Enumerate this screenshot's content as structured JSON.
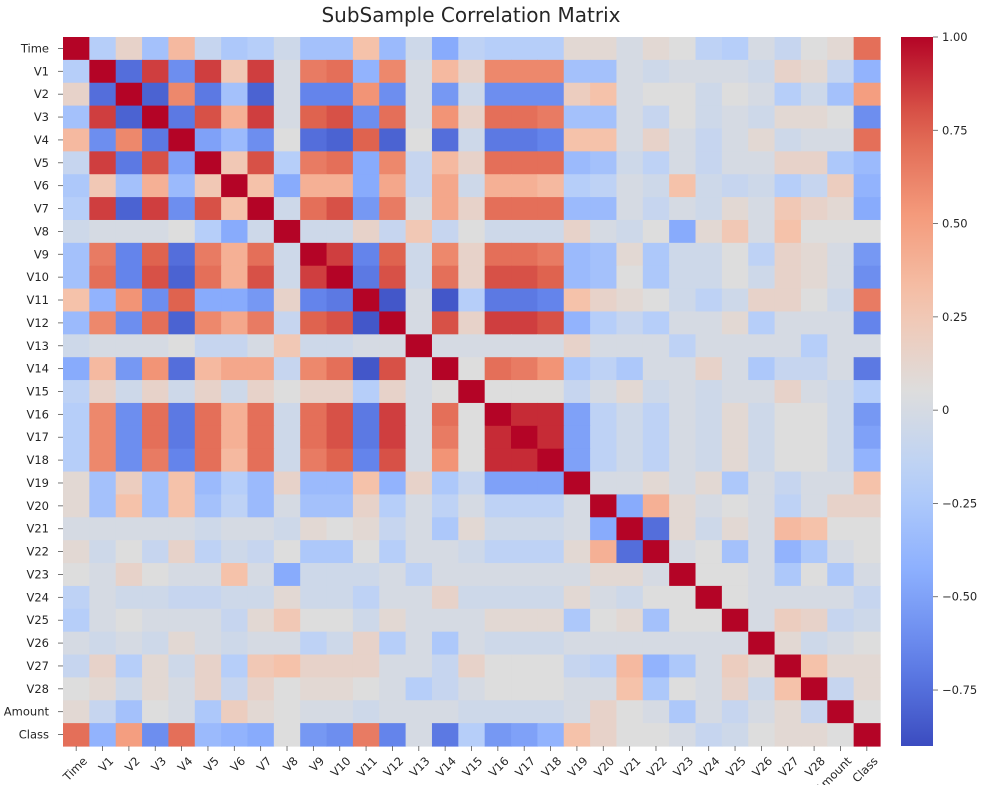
{
  "chart_data": {
    "type": "heatmap",
    "title": "SubSample Correlation Matrix",
    "labels": [
      "Time",
      "V1",
      "V2",
      "V3",
      "V4",
      "V5",
      "V6",
      "V7",
      "V8",
      "V9",
      "V10",
      "V11",
      "V12",
      "V13",
      "V14",
      "V15",
      "V16",
      "V17",
      "V18",
      "V19",
      "V20",
      "V21",
      "V22",
      "V23",
      "V24",
      "V25",
      "V26",
      "V27",
      "V28",
      "Amount",
      "Class"
    ],
    "matrix": [
      [
        1.0,
        -0.2,
        0.15,
        -0.3,
        0.35,
        -0.1,
        -0.25,
        -0.2,
        -0.05,
        -0.3,
        -0.3,
        0.3,
        -0.35,
        -0.05,
        -0.45,
        -0.15,
        -0.2,
        -0.2,
        -0.2,
        0.1,
        0.1,
        0.0,
        0.1,
        0.05,
        -0.15,
        -0.2,
        0.0,
        -0.1,
        0.05,
        0.1,
        0.7
      ],
      [
        -0.2,
        1.0,
        -0.75,
        0.85,
        -0.6,
        0.85,
        0.25,
        0.85,
        0.0,
        0.65,
        0.7,
        -0.4,
        0.6,
        0.0,
        0.35,
        0.15,
        0.6,
        0.6,
        0.6,
        -0.3,
        -0.3,
        0.0,
        -0.05,
        0.0,
        0.0,
        0.0,
        -0.05,
        0.15,
        0.1,
        -0.1,
        -0.4
      ],
      [
        0.15,
        -0.75,
        1.0,
        -0.8,
        0.6,
        -0.7,
        -0.3,
        -0.8,
        0.0,
        -0.65,
        -0.65,
        0.55,
        -0.6,
        0.0,
        -0.55,
        -0.05,
        -0.6,
        -0.6,
        -0.6,
        0.2,
        0.3,
        0.0,
        0.05,
        0.05,
        -0.05,
        0.05,
        0.0,
        -0.2,
        -0.05,
        -0.3,
        0.5
      ],
      [
        -0.3,
        0.85,
        -0.8,
        1.0,
        -0.7,
        0.8,
        0.4,
        0.85,
        0.0,
        0.75,
        0.8,
        -0.6,
        0.7,
        0.0,
        0.55,
        0.15,
        0.7,
        0.7,
        0.65,
        -0.3,
        -0.3,
        0.0,
        -0.1,
        0.05,
        -0.05,
        0.0,
        -0.05,
        0.1,
        0.1,
        0.05,
        -0.6
      ],
      [
        0.35,
        -0.6,
        0.6,
        -0.7,
        1.0,
        -0.5,
        -0.35,
        -0.6,
        0.05,
        -0.75,
        -0.8,
        0.75,
        -0.8,
        0.05,
        -0.75,
        -0.05,
        -0.7,
        -0.7,
        -0.65,
        0.3,
        0.3,
        0.0,
        0.15,
        0.0,
        -0.1,
        0.0,
        0.1,
        -0.05,
        0.0,
        0.0,
        0.7
      ],
      [
        -0.1,
        0.85,
        -0.7,
        0.8,
        -0.5,
        1.0,
        0.25,
        0.8,
        -0.2,
        0.65,
        0.7,
        -0.45,
        0.6,
        -0.1,
        0.35,
        0.15,
        0.7,
        0.7,
        0.7,
        -0.35,
        -0.3,
        -0.05,
        -0.15,
        0.0,
        -0.1,
        0.0,
        0.0,
        0.15,
        0.15,
        -0.25,
        -0.35
      ],
      [
        -0.25,
        0.25,
        -0.3,
        0.4,
        -0.35,
        0.25,
        1.0,
        0.3,
        -0.45,
        0.4,
        0.4,
        -0.45,
        0.45,
        -0.1,
        0.45,
        -0.05,
        0.4,
        0.4,
        0.35,
        -0.2,
        -0.15,
        0.0,
        -0.05,
        0.3,
        -0.05,
        -0.1,
        -0.05,
        -0.2,
        -0.1,
        0.2,
        -0.4
      ],
      [
        -0.2,
        0.85,
        -0.8,
        0.85,
        -0.6,
        0.8,
        0.3,
        1.0,
        -0.05,
        0.7,
        0.8,
        -0.55,
        0.65,
        0.0,
        0.45,
        0.15,
        0.7,
        0.7,
        0.7,
        -0.35,
        -0.35,
        0.0,
        -0.1,
        0.0,
        -0.05,
        0.1,
        0.0,
        0.25,
        0.15,
        0.1,
        -0.45
      ],
      [
        -0.05,
        0.0,
        0.0,
        0.0,
        0.05,
        -0.2,
        -0.45,
        -0.05,
        1.0,
        -0.05,
        -0.05,
        0.15,
        -0.1,
        0.25,
        -0.1,
        0.05,
        -0.05,
        -0.05,
        -0.05,
        0.15,
        0.0,
        -0.05,
        0.05,
        -0.45,
        0.1,
        0.25,
        0.0,
        0.3,
        0.05,
        0.05,
        0.05
      ],
      [
        -0.3,
        0.65,
        -0.65,
        0.75,
        -0.75,
        0.65,
        0.4,
        0.7,
        -0.05,
        1.0,
        0.85,
        -0.65,
        0.75,
        -0.05,
        0.6,
        0.15,
        0.7,
        0.7,
        0.65,
        -0.35,
        -0.3,
        0.1,
        -0.25,
        -0.05,
        -0.05,
        0.05,
        -0.15,
        0.15,
        0.1,
        0.0,
        -0.55
      ],
      [
        -0.3,
        0.7,
        -0.65,
        0.8,
        -0.8,
        0.7,
        0.4,
        0.8,
        -0.05,
        0.85,
        1.0,
        -0.7,
        0.8,
        -0.05,
        0.7,
        0.15,
        0.8,
        0.8,
        0.75,
        -0.35,
        -0.3,
        0.05,
        -0.25,
        -0.05,
        -0.05,
        0.05,
        -0.05,
        0.15,
        0.1,
        0.0,
        -0.6
      ],
      [
        0.3,
        -0.4,
        0.55,
        -0.6,
        0.75,
        -0.45,
        -0.45,
        -0.55,
        0.15,
        -0.65,
        -0.7,
        1.0,
        -0.85,
        0.0,
        -0.85,
        -0.2,
        -0.7,
        -0.7,
        -0.65,
        0.3,
        0.15,
        0.1,
        0.05,
        -0.05,
        -0.15,
        -0.05,
        0.15,
        0.15,
        0.05,
        -0.05,
        0.65
      ],
      [
        -0.35,
        0.6,
        -0.6,
        0.7,
        -0.8,
        0.6,
        0.45,
        0.65,
        -0.1,
        0.75,
        0.8,
        -0.85,
        1.0,
        0.0,
        0.8,
        0.15,
        0.85,
        0.85,
        0.8,
        -0.4,
        -0.2,
        -0.1,
        -0.2,
        0.0,
        0.0,
        0.1,
        -0.2,
        0.0,
        0.0,
        0.0,
        -0.65
      ],
      [
        -0.05,
        0.0,
        0.0,
        0.0,
        0.05,
        -0.1,
        -0.1,
        0.0,
        0.25,
        -0.05,
        -0.05,
        0.0,
        0.0,
        1.0,
        0.0,
        0.0,
        0.0,
        0.0,
        0.0,
        0.15,
        0.0,
        0.0,
        0.0,
        -0.15,
        0.0,
        0.0,
        0.0,
        0.0,
        -0.2,
        0.0,
        0.0
      ],
      [
        -0.45,
        0.35,
        -0.55,
        0.55,
        -0.75,
        0.35,
        0.45,
        0.45,
        -0.1,
        0.6,
        0.7,
        -0.85,
        0.8,
        0.0,
        1.0,
        0.05,
        0.7,
        0.65,
        0.55,
        -0.25,
        -0.15,
        -0.25,
        0.0,
        0.0,
        0.15,
        0.0,
        -0.25,
        -0.1,
        -0.1,
        0.0,
        -0.7
      ],
      [
        -0.15,
        0.15,
        -0.05,
        0.15,
        -0.05,
        0.15,
        -0.05,
        0.15,
        0.05,
        0.15,
        0.15,
        -0.2,
        0.15,
        0.0,
        0.05,
        1.0,
        0.05,
        0.05,
        0.05,
        -0.1,
        0.0,
        0.1,
        -0.05,
        0.0,
        -0.05,
        0.0,
        0.0,
        0.15,
        0.0,
        -0.05,
        -0.2
      ],
      [
        -0.2,
        0.6,
        -0.6,
        0.7,
        -0.7,
        0.7,
        0.4,
        0.7,
        -0.05,
        0.7,
        0.8,
        -0.7,
        0.85,
        0.0,
        0.7,
        0.05,
        1.0,
        0.9,
        0.9,
        -0.5,
        -0.15,
        -0.05,
        -0.15,
        0.0,
        -0.05,
        0.1,
        -0.05,
        0.05,
        0.05,
        -0.05,
        -0.55
      ],
      [
        -0.2,
        0.6,
        -0.6,
        0.7,
        -0.7,
        0.7,
        0.4,
        0.7,
        -0.05,
        0.7,
        0.8,
        -0.7,
        0.85,
        0.0,
        0.65,
        0.05,
        0.9,
        1.0,
        0.9,
        -0.5,
        -0.15,
        -0.05,
        -0.15,
        0.0,
        -0.05,
        0.1,
        -0.05,
        0.05,
        0.05,
        -0.05,
        -0.5
      ],
      [
        -0.2,
        0.6,
        -0.6,
        0.65,
        -0.65,
        0.7,
        0.35,
        0.7,
        -0.05,
        0.65,
        0.75,
        -0.65,
        0.8,
        0.0,
        0.55,
        0.05,
        0.9,
        0.9,
        1.0,
        -0.5,
        -0.15,
        -0.05,
        -0.15,
        0.0,
        -0.05,
        0.1,
        -0.05,
        0.05,
        0.05,
        -0.05,
        -0.4
      ],
      [
        0.1,
        -0.3,
        0.2,
        -0.3,
        0.3,
        -0.35,
        -0.2,
        -0.35,
        0.15,
        -0.35,
        -0.35,
        0.3,
        -0.4,
        0.15,
        -0.25,
        -0.1,
        -0.5,
        -0.5,
        -0.5,
        1.0,
        0.0,
        0.0,
        0.1,
        0.0,
        0.1,
        -0.25,
        0.0,
        -0.1,
        0.0,
        0.0,
        0.3
      ],
      [
        0.1,
        -0.3,
        0.3,
        -0.3,
        0.3,
        -0.3,
        -0.15,
        -0.35,
        0.0,
        -0.3,
        -0.3,
        0.15,
        -0.2,
        0.0,
        -0.15,
        0.0,
        -0.15,
        -0.15,
        -0.15,
        0.0,
        1.0,
        -0.45,
        0.4,
        0.1,
        0.0,
        0.05,
        0.0,
        -0.15,
        0.0,
        0.15,
        0.15
      ],
      [
        0.0,
        0.0,
        0.0,
        0.0,
        0.0,
        -0.05,
        0.0,
        0.0,
        -0.05,
        0.1,
        0.05,
        0.1,
        -0.1,
        0.0,
        -0.25,
        0.1,
        -0.05,
        -0.05,
        -0.05,
        0.0,
        -0.45,
        1.0,
        -0.75,
        0.1,
        -0.05,
        0.1,
        0.0,
        0.35,
        0.3,
        0.05,
        0.05
      ],
      [
        0.1,
        -0.05,
        0.05,
        -0.1,
        0.15,
        -0.15,
        -0.05,
        -0.1,
        0.05,
        -0.25,
        -0.25,
        0.05,
        -0.2,
        0.0,
        0.0,
        -0.05,
        -0.15,
        -0.15,
        -0.15,
        0.1,
        0.4,
        -0.75,
        1.0,
        0.0,
        0.05,
        -0.3,
        0.0,
        -0.4,
        -0.25,
        0.0,
        0.05
      ],
      [
        0.05,
        0.0,
        0.15,
        0.05,
        0.0,
        0.0,
        0.3,
        0.0,
        -0.45,
        -0.05,
        -0.05,
        -0.05,
        0.0,
        -0.15,
        0.0,
        0.0,
        0.0,
        0.0,
        0.0,
        0.0,
        0.1,
        0.1,
        0.0,
        1.0,
        0.05,
        0.05,
        0.0,
        -0.25,
        0.05,
        -0.25,
        0.0
      ],
      [
        -0.15,
        0.0,
        -0.05,
        -0.05,
        -0.1,
        -0.1,
        -0.05,
        -0.05,
        0.1,
        -0.05,
        -0.05,
        -0.15,
        0.0,
        0.0,
        0.15,
        -0.05,
        -0.05,
        -0.05,
        -0.05,
        0.1,
        0.0,
        -0.05,
        0.05,
        0.05,
        1.0,
        0.05,
        0.0,
        0.0,
        0.0,
        0.0,
        -0.1
      ],
      [
        -0.2,
        0.0,
        0.05,
        0.0,
        0.0,
        0.0,
        -0.1,
        0.1,
        0.25,
        0.05,
        0.05,
        -0.05,
        0.1,
        0.0,
        0.0,
        0.0,
        0.1,
        0.1,
        0.1,
        -0.25,
        0.05,
        0.1,
        -0.3,
        0.05,
        0.05,
        1.0,
        0.0,
        0.2,
        0.15,
        -0.1,
        -0.05
      ],
      [
        0.0,
        -0.05,
        0.0,
        -0.05,
        0.1,
        0.0,
        -0.05,
        0.0,
        0.0,
        -0.15,
        -0.05,
        0.15,
        -0.2,
        0.0,
        -0.25,
        0.0,
        -0.05,
        -0.05,
        -0.05,
        0.0,
        0.0,
        0.0,
        0.0,
        0.0,
        0.0,
        0.0,
        1.0,
        0.1,
        -0.05,
        0.0,
        0.05
      ],
      [
        -0.1,
        0.15,
        -0.2,
        0.1,
        -0.05,
        0.15,
        -0.2,
        0.25,
        0.3,
        0.15,
        0.15,
        0.15,
        0.0,
        0.0,
        -0.1,
        0.15,
        0.05,
        0.05,
        0.05,
        -0.1,
        -0.15,
        0.35,
        -0.4,
        -0.25,
        0.0,
        0.2,
        0.1,
        1.0,
        0.3,
        0.1,
        0.1
      ],
      [
        0.05,
        0.1,
        -0.05,
        0.1,
        0.0,
        0.15,
        -0.1,
        0.15,
        0.05,
        0.1,
        0.1,
        0.05,
        0.0,
        -0.2,
        -0.1,
        0.0,
        0.05,
        0.05,
        0.05,
        0.0,
        0.0,
        0.3,
        -0.25,
        0.05,
        0.0,
        0.15,
        -0.05,
        0.3,
        1.0,
        -0.1,
        0.1
      ],
      [
        0.1,
        -0.1,
        -0.3,
        0.05,
        0.0,
        -0.25,
        0.2,
        0.1,
        0.05,
        0.0,
        0.0,
        -0.05,
        0.0,
        0.0,
        0.0,
        -0.05,
        -0.05,
        -0.05,
        -0.05,
        0.0,
        0.15,
        0.05,
        0.0,
        -0.25,
        0.0,
        -0.1,
        0.0,
        0.1,
        -0.1,
        1.0,
        0.05
      ],
      [
        0.7,
        -0.4,
        0.5,
        -0.6,
        0.7,
        -0.35,
        -0.4,
        -0.45,
        0.05,
        -0.55,
        -0.6,
        0.65,
        -0.65,
        0.0,
        -0.7,
        -0.2,
        -0.55,
        -0.5,
        -0.4,
        0.3,
        0.15,
        0.05,
        0.05,
        0.0,
        -0.1,
        -0.05,
        0.05,
        0.1,
        0.1,
        0.05,
        1.0
      ]
    ],
    "vmin": -0.9,
    "vmax": 1.0,
    "colorbar_ticks": [
      1.0,
      0.75,
      0.5,
      0.25,
      0,
      -0.25,
      -0.5,
      -0.75
    ],
    "colorbar_tick_labels": [
      "1.00",
      "0.75",
      "0.50",
      "0.25",
      "0",
      "−0.25",
      "−0.50",
      "−0.75"
    ],
    "colormap": "coolwarm"
  }
}
